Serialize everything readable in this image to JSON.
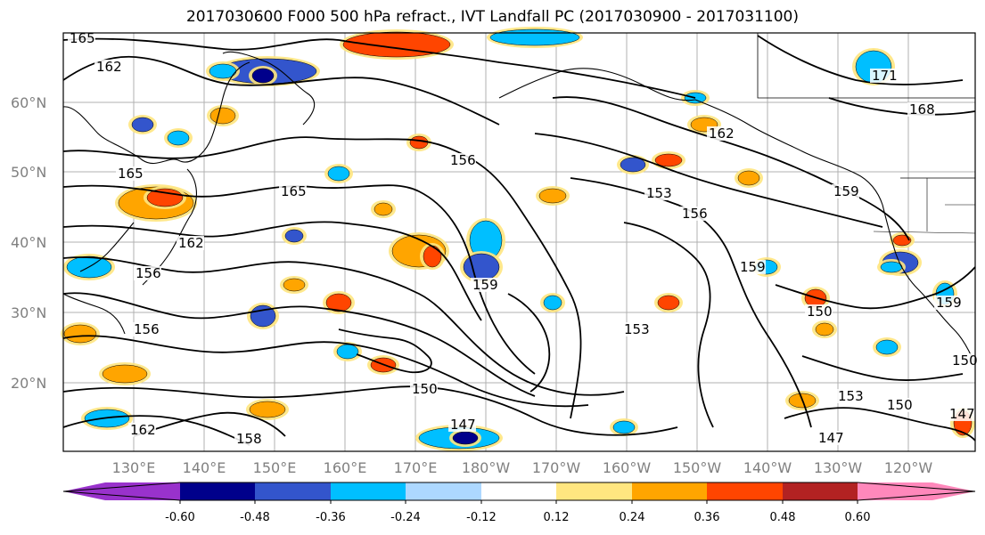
{
  "title": "2017030600 F000 500 hPa refract., IVT Landfall PC (2017030900 - 2017031100)",
  "lat_labels": [
    "60°N",
    "50°N",
    "40°N",
    "30°N",
    "20°N"
  ],
  "lon_labels": [
    "130°E",
    "140°E",
    "150°E",
    "160°E",
    "170°E",
    "180°W",
    "170°W",
    "160°W",
    "150°W",
    "140°W",
    "130°W",
    "120°W"
  ],
  "contour_labels": [
    "165",
    "162",
    "165",
    "165",
    "162",
    "156",
    "156",
    "159",
    "156",
    "153",
    "156",
    "159",
    "153",
    "150",
    "147",
    "150",
    "162",
    "158",
    "153",
    "150",
    "147",
    "150",
    "159",
    "168",
    "171",
    "159",
    "162",
    "147"
  ],
  "colorbar": {
    "colors": [
      "#9932cc",
      "#00008b",
      "#3355cc",
      "#00bfff",
      "#add8ff",
      "#ffffff",
      "#ffe680",
      "#ffa500",
      "#ff4500",
      "#b22222",
      "#ff88bb"
    ],
    "tick_labels": [
      "-0.60",
      "-0.48",
      "-0.36",
      "-0.24",
      "-0.12",
      "0.12",
      "0.24",
      "0.36",
      "0.48",
      "0.60"
    ]
  }
}
